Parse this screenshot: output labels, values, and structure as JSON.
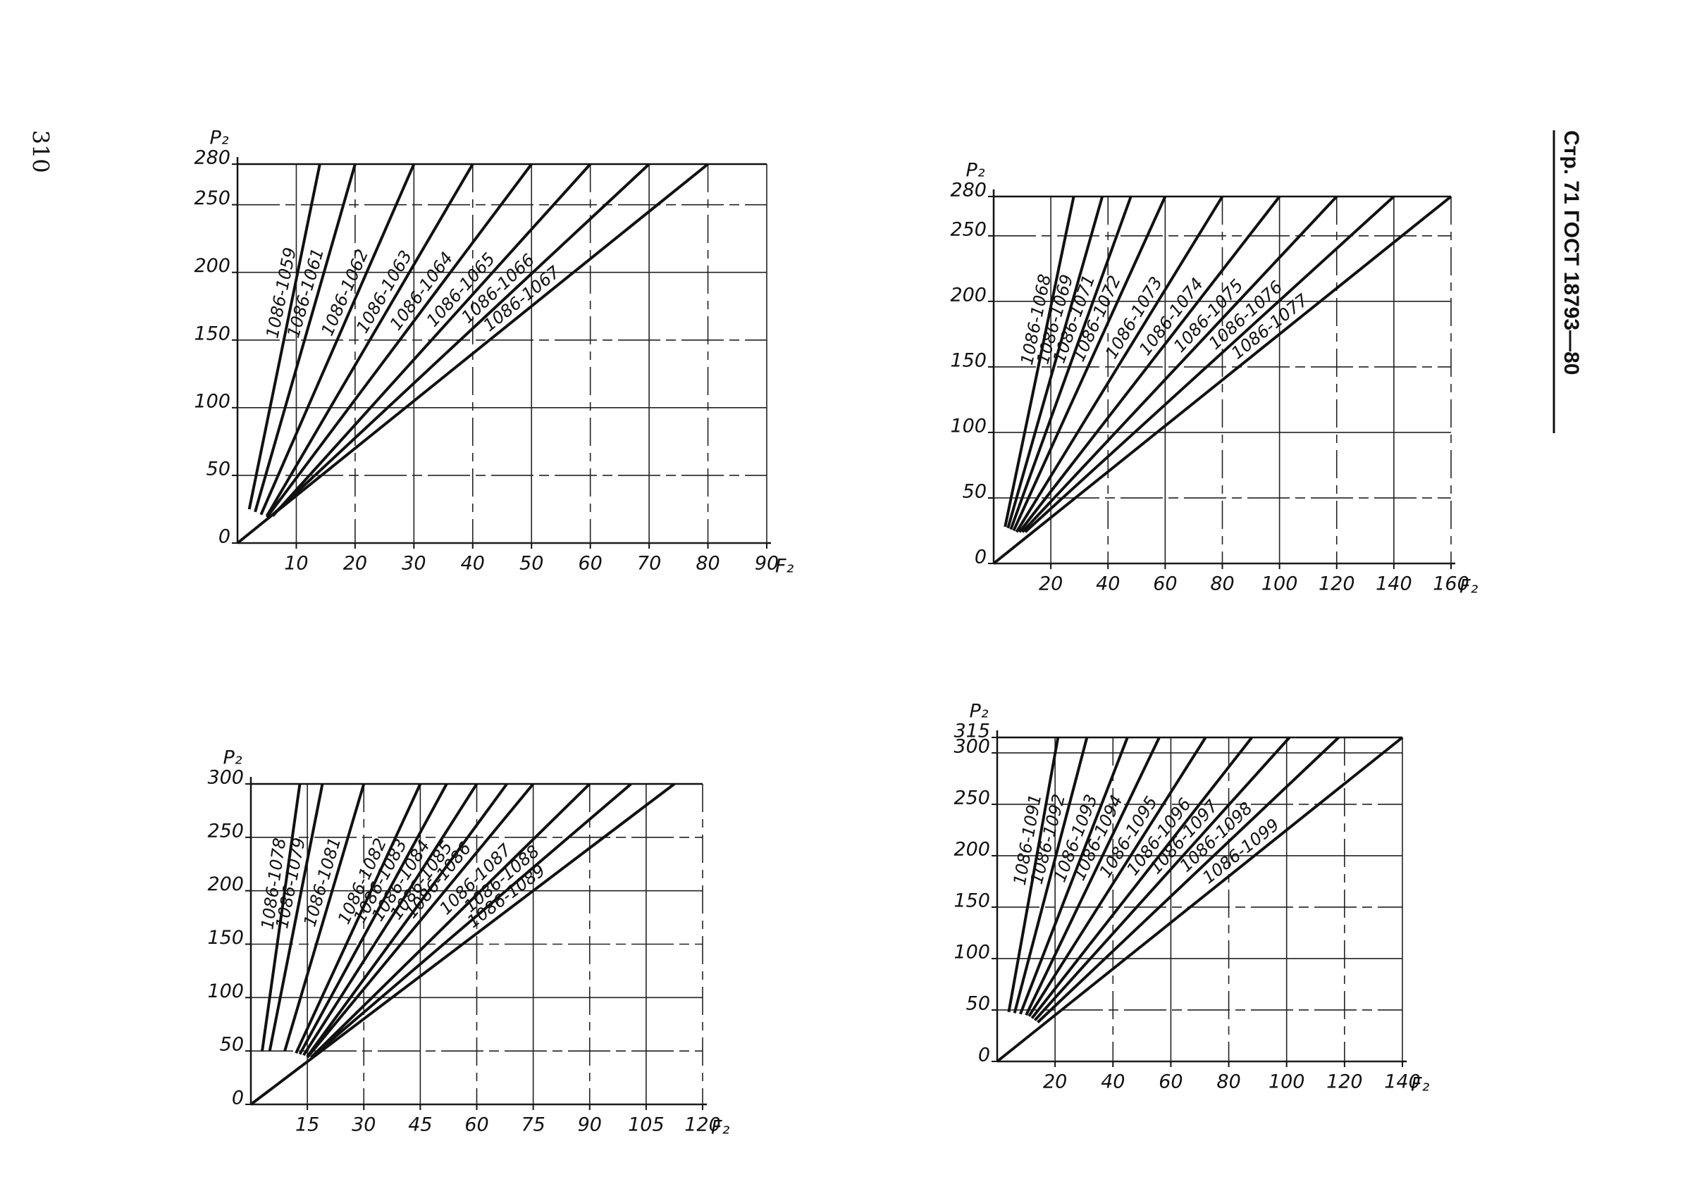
{
  "page_number": "310",
  "header": "Стр. 71 ГОСТ 18793—80",
  "chart_data": [
    {
      "type": "line",
      "x_label": "F₂",
      "y_label": "P₂",
      "color": "#111111",
      "grid": true,
      "xlim": [
        0,
        90
      ],
      "ylim": [
        0,
        280
      ],
      "xticks": [
        10,
        20,
        30,
        40,
        50,
        60,
        70,
        80,
        90
      ],
      "yticks": [
        0,
        50,
        100,
        150,
        200,
        250,
        280
      ],
      "series": [
        {
          "name": "1086-1059",
          "x": [
            2,
            14
          ],
          "values": [
            25,
            280
          ]
        },
        {
          "name": "1086-1061",
          "x": [
            3,
            20
          ],
          "values": [
            23,
            280
          ]
        },
        {
          "name": "1086-1062",
          "x": [
            4,
            30
          ],
          "values": [
            21,
            280
          ]
        },
        {
          "name": "1086-1063",
          "x": [
            5,
            40
          ],
          "values": [
            20,
            280
          ]
        },
        {
          "name": "1086-1064",
          "x": [
            5,
            50
          ],
          "values": [
            19,
            280
          ]
        },
        {
          "name": "1086-1065",
          "x": [
            6,
            60
          ],
          "values": [
            20,
            280
          ]
        },
        {
          "name": "1086-1066",
          "x": [
            6,
            70
          ],
          "values": [
            21,
            280
          ]
        },
        {
          "name": "1086-1067",
          "x": [
            0,
            80
          ],
          "values": [
            0,
            280
          ]
        }
      ]
    },
    {
      "type": "line",
      "x_label": "F₂",
      "y_label": "P₂",
      "color": "#111111",
      "grid": true,
      "xlim": [
        0,
        160
      ],
      "ylim": [
        0,
        280
      ],
      "xticks": [
        20,
        40,
        60,
        80,
        100,
        120,
        140,
        160
      ],
      "yticks": [
        0,
        50,
        100,
        150,
        200,
        250,
        280
      ],
      "series": [
        {
          "name": "1086-1068",
          "x": [
            4,
            28
          ],
          "values": [
            28,
            280
          ]
        },
        {
          "name": "1086-1069",
          "x": [
            5,
            38
          ],
          "values": [
            27,
            280
          ]
        },
        {
          "name": "1086-1071",
          "x": [
            6,
            48
          ],
          "values": [
            26,
            280
          ]
        },
        {
          "name": "1086-1072",
          "x": [
            7,
            60
          ],
          "values": [
            25,
            280
          ]
        },
        {
          "name": "1086-1073",
          "x": [
            8,
            80
          ],
          "values": [
            24,
            280
          ]
        },
        {
          "name": "1086-1074",
          "x": [
            9,
            100
          ],
          "values": [
            24,
            280
          ]
        },
        {
          "name": "1086-1075",
          "x": [
            10,
            120
          ],
          "values": [
            24,
            280
          ]
        },
        {
          "name": "1086-1076",
          "x": [
            11,
            140
          ],
          "values": [
            24,
            280
          ]
        },
        {
          "name": "1086-1077",
          "x": [
            0,
            160
          ],
          "values": [
            0,
            280
          ]
        }
      ]
    },
    {
      "type": "line",
      "x_label": "F₂",
      "y_label": "P₂",
      "color": "#111111",
      "grid": true,
      "xlim": [
        0,
        120
      ],
      "ylim": [
        0,
        300
      ],
      "xticks": [
        15,
        30,
        45,
        60,
        75,
        90,
        105,
        120
      ],
      "yticks": [
        0,
        50,
        100,
        150,
        200,
        250,
        300
      ],
      "series": [
        {
          "name": "1086-1078",
          "x": [
            3,
            13
          ],
          "values": [
            50,
            300
          ]
        },
        {
          "name": "1086-1079",
          "x": [
            5,
            19
          ],
          "values": [
            50,
            300
          ]
        },
        {
          "name": "1086-1081",
          "x": [
            9,
            30
          ],
          "values": [
            50,
            300
          ]
        },
        {
          "name": "1086-1082",
          "x": [
            12,
            45
          ],
          "values": [
            48,
            300
          ]
        },
        {
          "name": "1086-1083",
          "x": [
            13,
            52
          ],
          "values": [
            47,
            300
          ]
        },
        {
          "name": "1086-1084",
          "x": [
            14,
            60
          ],
          "values": [
            46,
            300
          ]
        },
        {
          "name": "1086-1085",
          "x": [
            15,
            68
          ],
          "values": [
            45,
            300
          ]
        },
        {
          "name": "1086-1086",
          "x": [
            15,
            75
          ],
          "values": [
            44,
            300
          ]
        },
        {
          "name": "1086-1087",
          "x": [
            16,
            90
          ],
          "values": [
            44,
            300
          ]
        },
        {
          "name": "1086-1088",
          "x": [
            16,
            101
          ],
          "values": [
            44,
            300
          ]
        },
        {
          "name": "1086-1089",
          "x": [
            0,
            112.5
          ],
          "values": [
            0,
            300
          ]
        }
      ]
    },
    {
      "type": "line",
      "x_label": "F₂",
      "y_label": "P₂",
      "color": "#111111",
      "grid": true,
      "xlim": [
        0,
        140
      ],
      "ylim": [
        0,
        315
      ],
      "xticks": [
        20,
        40,
        60,
        80,
        100,
        120,
        140
      ],
      "yticks": [
        0,
        50,
        100,
        150,
        200,
        250,
        300,
        315
      ],
      "series": [
        {
          "name": "1086-1091",
          "x": [
            4,
            21
          ],
          "values": [
            48,
            315
          ]
        },
        {
          "name": "1086-1092",
          "x": [
            6,
            31
          ],
          "values": [
            47,
            315
          ]
        },
        {
          "name": "1086-1093",
          "x": [
            8,
            45
          ],
          "values": [
            46,
            315
          ]
        },
        {
          "name": "1086-1094",
          "x": [
            10,
            56
          ],
          "values": [
            45,
            315
          ]
        },
        {
          "name": "1086-1095",
          "x": [
            11,
            72
          ],
          "values": [
            44,
            315
          ]
        },
        {
          "name": "1086-1096",
          "x": [
            12,
            88
          ],
          "values": [
            42,
            315
          ]
        },
        {
          "name": "1086-1097",
          "x": [
            13,
            101
          ],
          "values": [
            40,
            315
          ]
        },
        {
          "name": "1086-1098",
          "x": [
            14,
            118
          ],
          "values": [
            38,
            315
          ]
        },
        {
          "name": "1086-1099",
          "x": [
            0,
            140
          ],
          "values": [
            0,
            315
          ]
        }
      ]
    }
  ]
}
